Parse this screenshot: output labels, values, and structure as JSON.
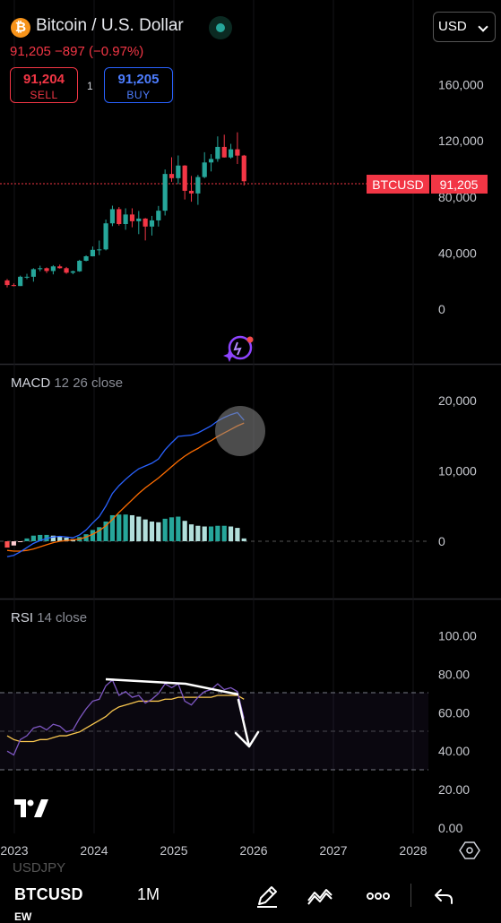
{
  "header": {
    "title": "Bitcoin / U.S. Dollar",
    "price_line": "91,205 −897 (−0.97%)",
    "sell": {
      "price": "91,204",
      "label": "SELL"
    },
    "buy": {
      "price": "91,205",
      "label": "BUY"
    },
    "spread": "1",
    "currency": "USD"
  },
  "price_axis": [
    "160,000",
    "120,000",
    "80,000",
    "40,000",
    "0"
  ],
  "price_tag": {
    "symbol": "BTCUSD",
    "price": "91,205"
  },
  "macd": {
    "name": "MACD",
    "params": "12 26 close",
    "axis": [
      "20,000",
      "10,000",
      "0"
    ]
  },
  "rsi": {
    "name": "RSI",
    "params": "14 close",
    "axis": [
      "100.00",
      "80.00",
      "60.00",
      "40.00",
      "20.00",
      "0.00"
    ]
  },
  "time_axis": [
    "2023",
    "2024",
    "2025",
    "2026",
    "2027",
    "2028"
  ],
  "bottom_bar": {
    "prev_symbol": "USDJPY",
    "symbol": "BTCUSD",
    "interval": "1M",
    "next_symbol": "EW"
  },
  "colors": {
    "up": "#26a69a",
    "down": "#f23645",
    "macd_line": "#2962ff",
    "signal_line": "#ff6d00",
    "rsi_line": "#7e57c2",
    "rsi_ma": "#f9c74f"
  },
  "chart_data": [
    {
      "type": "candlestick",
      "title": "BTCUSD",
      "interval": "1M",
      "ylim": [
        0,
        170000
      ],
      "x": [
        "2022-11",
        "2022-12",
        "2023-01",
        "2023-02",
        "2023-03",
        "2023-04",
        "2023-05",
        "2023-06",
        "2023-07",
        "2023-08",
        "2023-09",
        "2023-10",
        "2023-11",
        "2023-12",
        "2024-01",
        "2024-02",
        "2024-03",
        "2024-04",
        "2024-05",
        "2024-06",
        "2024-07",
        "2024-08",
        "2024-09",
        "2024-10",
        "2024-11",
        "2024-12",
        "2025-01",
        "2025-02",
        "2025-03",
        "2025-04",
        "2025-05",
        "2025-06",
        "2025-07",
        "2025-08",
        "2025-09",
        "2025-10",
        "2025-11"
      ],
      "open": [
        20500,
        17200,
        16500,
        23100,
        23100,
        28500,
        29200,
        27200,
        30500,
        29200,
        26000,
        27000,
        34500,
        37700,
        42300,
        42600,
        61200,
        71300,
        60700,
        67500,
        62700,
        64600,
        58900,
        63300,
        70200,
        96400,
        93400,
        102400,
        84400,
        82500,
        94200,
        104600,
        107100,
        115700,
        108200,
        114000,
        109500
      ],
      "high": [
        21500,
        18400,
        23900,
        25200,
        29200,
        31000,
        29800,
        31400,
        31800,
        30100,
        27500,
        35200,
        38400,
        44700,
        48900,
        63900,
        73800,
        72800,
        71900,
        71900,
        70000,
        65000,
        66500,
        73600,
        99600,
        108300,
        109600,
        102700,
        95000,
        95700,
        111900,
        110500,
        123200,
        124400,
        117900,
        126100,
        110000
      ],
      "low": [
        15500,
        16300,
        16500,
        21400,
        19600,
        27000,
        25800,
        24800,
        28900,
        25200,
        24900,
        26600,
        34100,
        37600,
        38500,
        41900,
        59200,
        59600,
        56600,
        58400,
        53500,
        49000,
        52500,
        58900,
        66800,
        90800,
        89200,
        78200,
        76600,
        74400,
        93400,
        98200,
        105100,
        108100,
        107300,
        103500,
        88200
      ],
      "close": [
        17200,
        16500,
        23100,
        23100,
        28500,
        29200,
        27200,
        30500,
        29200,
        26000,
        27000,
        34500,
        37700,
        42300,
        42600,
        61200,
        71300,
        60700,
        67500,
        62700,
        64600,
        58900,
        63300,
        70200,
        96400,
        93400,
        102400,
        84400,
        82500,
        94200,
        104600,
        107100,
        115700,
        108200,
        114000,
        109500,
        91205
      ]
    },
    {
      "type": "line",
      "title": "MACD 12 26 close",
      "ylim": [
        -3000,
        22000
      ],
      "x": [
        "2022-11",
        "2022-12",
        "2023-01",
        "2023-02",
        "2023-03",
        "2023-04",
        "2023-05",
        "2023-06",
        "2023-07",
        "2023-08",
        "2023-09",
        "2023-10",
        "2023-11",
        "2023-12",
        "2024-01",
        "2024-02",
        "2024-03",
        "2024-04",
        "2024-05",
        "2024-06",
        "2024-07",
        "2024-08",
        "2024-09",
        "2024-10",
        "2024-11",
        "2024-12",
        "2025-01",
        "2025-02",
        "2025-03",
        "2025-04",
        "2025-05",
        "2025-06",
        "2025-07",
        "2025-08",
        "2025-09",
        "2025-10",
        "2025-11"
      ],
      "series": [
        {
          "values": [
            -2200,
            -2000,
            -1500,
            -900,
            -300,
            100,
            400,
            600,
            700,
            600,
            500,
            900,
            1600,
            2600,
            3500,
            5000,
            6800,
            7900,
            8800,
            9600,
            10300,
            10700,
            11100,
            11700,
            13000,
            14000,
            14900,
            15000,
            15100,
            15400,
            15900,
            16400,
            17100,
            17600,
            18000,
            18300,
            17200
          ]
        },
        {
          "values": [
            -1300,
            -1400,
            -1400,
            -1300,
            -1100,
            -800,
            -500,
            -200,
            0,
            100,
            200,
            300,
            600,
            1000,
            1500,
            2200,
            3100,
            4100,
            5000,
            5900,
            6800,
            7600,
            8300,
            9000,
            9800,
            10600,
            11400,
            12100,
            12700,
            13200,
            13800,
            14300,
            14900,
            15400,
            15900,
            16400,
            16800
          ]
        }
      ]
    },
    {
      "type": "line",
      "title": "RSI 14 close",
      "ylim": [
        0,
        100
      ],
      "x": [
        "2022-11",
        "2022-12",
        "2023-01",
        "2023-02",
        "2023-03",
        "2023-04",
        "2023-05",
        "2023-06",
        "2023-07",
        "2023-08",
        "2023-09",
        "2023-10",
        "2023-11",
        "2023-12",
        "2024-01",
        "2024-02",
        "2024-03",
        "2024-04",
        "2024-05",
        "2024-06",
        "2024-07",
        "2024-08",
        "2024-09",
        "2024-10",
        "2024-11",
        "2024-12",
        "2025-01",
        "2025-02",
        "2025-03",
        "2025-04",
        "2025-05",
        "2025-06",
        "2025-07",
        "2025-08",
        "2025-09",
        "2025-10",
        "2025-11"
      ],
      "series": [
        {
          "values": [
            40,
            38,
            46,
            48,
            52,
            53,
            51,
            54,
            53,
            50,
            51,
            57,
            62,
            66,
            67,
            74,
            77,
            69,
            71,
            68,
            69,
            65,
            67,
            70,
            75,
            73,
            75,
            66,
            64,
            68,
            71,
            72,
            75,
            72,
            73,
            71,
            57
          ]
        },
        {
          "values": [
            48,
            46,
            45,
            45,
            45,
            46,
            46,
            47,
            48,
            48,
            49,
            50,
            52,
            54,
            56,
            58,
            61,
            63,
            64,
            65,
            66,
            66,
            66,
            66,
            67,
            67,
            68,
            68,
            68,
            68,
            68,
            68,
            69,
            69,
            69,
            69,
            67
          ]
        }
      ],
      "annotations": [
        "divergence trendline",
        "down arrow"
      ]
    }
  ]
}
